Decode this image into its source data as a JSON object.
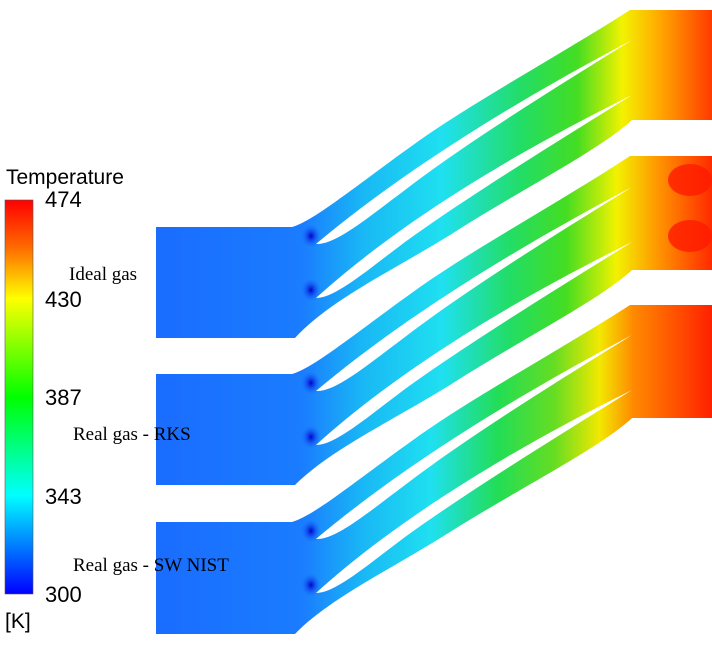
{
  "legend": {
    "title": "Temperature",
    "unit": "[K]",
    "ticks": [
      "474",
      "430",
      "387",
      "343",
      "300"
    ],
    "colors": [
      "#ff0000",
      "#ffff00",
      "#00ff00",
      "#00ffff",
      "#0000ff"
    ]
  },
  "cases": [
    {
      "label": "Ideal gas"
    },
    {
      "label": "Real gas - RKS"
    },
    {
      "label": "Real gas - SW NIST"
    }
  ],
  "field_colors": {
    "inlet": "#1a6cff",
    "blade_wake": "#0000d8",
    "mid_passage": "#1fd8f0",
    "green_zone": "#22dd33",
    "yellow_zone": "#f5f500",
    "outlet_hot": "#ff3a00"
  }
}
